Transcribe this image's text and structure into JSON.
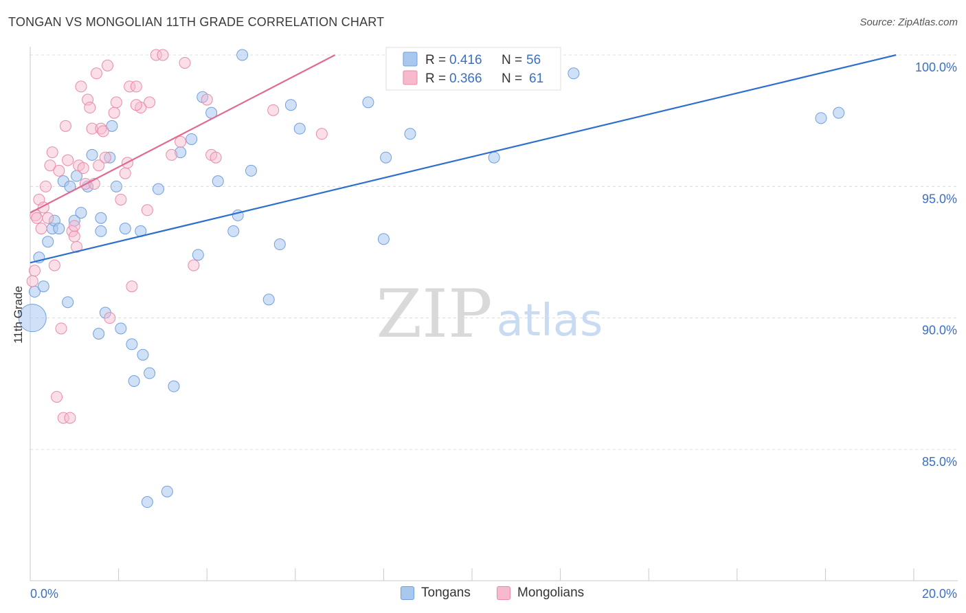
{
  "header": {
    "title": "TONGAN VS MONGOLIAN 11TH GRADE CORRELATION CHART",
    "source": "Source: ZipAtlas.com"
  },
  "watermark": {
    "zip": "ZIP",
    "atlas": "atlas"
  },
  "colors": {
    "tongan_fill": "#a9c8f0",
    "tongan_stroke": "#6f9fdc",
    "tongan_line": "#2c6fcf",
    "mongolian_fill": "#f7b9cc",
    "mongolian_stroke": "#ea8aa8",
    "mongolian_line": "#e2698f",
    "axis_text": "#3a6fc4",
    "grid": "#dcdcdc"
  },
  "legend": {
    "rows": [
      {
        "r_label": "R =",
        "r_value": "0.416",
        "n_label": "N =",
        "n_value": "56"
      },
      {
        "r_label": "R =",
        "r_value": "0.366",
        "n_label": "N =",
        "n_value": "61"
      }
    ]
  },
  "bottom_legend": {
    "tongans": "Tongans",
    "mongolians": "Mongolians"
  },
  "chart_data": {
    "type": "scatter",
    "title": "TONGAN VS MONGOLIAN 11TH GRADE CORRELATION CHART",
    "xlabel": "",
    "ylabel": "11th Grade",
    "xlim": [
      0,
      20
    ],
    "ylim": [
      80.5,
      101
    ],
    "x_tick_labels": [
      {
        "value": 0,
        "label": "0.0%"
      },
      {
        "value": 20,
        "label": "20.0%"
      }
    ],
    "y_tick_labels": [
      {
        "value": 100,
        "label": "100.0%"
      },
      {
        "value": 95,
        "label": "95.0%"
      },
      {
        "value": 90,
        "label": "90.0%"
      },
      {
        "value": 85,
        "label": "85.0%"
      }
    ],
    "series": [
      {
        "name": "Tongans",
        "r": 0.416,
        "n": 56,
        "trendline": [
          [
            0,
            92.1
          ],
          [
            19.6,
            100.0
          ]
        ],
        "points": [
          [
            0.05,
            90.0
          ],
          [
            0.1,
            91.0
          ],
          [
            0.2,
            92.3
          ],
          [
            0.3,
            91.2
          ],
          [
            0.4,
            92.9
          ],
          [
            0.5,
            93.4
          ],
          [
            0.55,
            93.7
          ],
          [
            0.65,
            93.4
          ],
          [
            0.75,
            95.2
          ],
          [
            0.85,
            90.6
          ],
          [
            0.9,
            95.0
          ],
          [
            1.0,
            93.7
          ],
          [
            1.05,
            95.4
          ],
          [
            1.15,
            94.0
          ],
          [
            1.3,
            95.0
          ],
          [
            1.4,
            96.2
          ],
          [
            1.55,
            89.4
          ],
          [
            1.6,
            93.3
          ],
          [
            1.6,
            93.8
          ],
          [
            1.7,
            90.2
          ],
          [
            1.8,
            96.1
          ],
          [
            1.85,
            97.3
          ],
          [
            1.95,
            95.0
          ],
          [
            2.05,
            89.6
          ],
          [
            2.15,
            93.4
          ],
          [
            2.3,
            89.0
          ],
          [
            2.35,
            87.6
          ],
          [
            2.5,
            93.3
          ],
          [
            2.55,
            88.6
          ],
          [
            2.65,
            83.0
          ],
          [
            2.7,
            87.9
          ],
          [
            2.9,
            94.9
          ],
          [
            3.1,
            83.4
          ],
          [
            3.25,
            87.4
          ],
          [
            3.4,
            96.3
          ],
          [
            3.65,
            96.8
          ],
          [
            3.8,
            92.4
          ],
          [
            3.9,
            98.4
          ],
          [
            4.1,
            97.8
          ],
          [
            4.25,
            95.2
          ],
          [
            4.6,
            93.3
          ],
          [
            4.7,
            93.9
          ],
          [
            4.8,
            100.0
          ],
          [
            5.0,
            95.6
          ],
          [
            5.4,
            90.7
          ],
          [
            5.65,
            92.8
          ],
          [
            5.9,
            98.1
          ],
          [
            6.1,
            97.2
          ],
          [
            7.65,
            98.2
          ],
          [
            8.0,
            93.0
          ],
          [
            8.05,
            96.1
          ],
          [
            8.6,
            97.0
          ],
          [
            10.5,
            96.1
          ],
          [
            12.3,
            99.3
          ],
          [
            17.9,
            97.6
          ],
          [
            18.3,
            97.8
          ]
        ]
      },
      {
        "name": "Mongolians",
        "r": 0.366,
        "n": 61,
        "trendline": [
          [
            0,
            94.0
          ],
          [
            6.9,
            100.0
          ]
        ],
        "points": [
          [
            0.05,
            91.4
          ],
          [
            0.1,
            91.8
          ],
          [
            0.12,
            93.9
          ],
          [
            0.15,
            93.8
          ],
          [
            0.2,
            94.5
          ],
          [
            0.25,
            93.4
          ],
          [
            0.3,
            94.2
          ],
          [
            0.35,
            95.0
          ],
          [
            0.4,
            93.8
          ],
          [
            0.45,
            95.8
          ],
          [
            0.5,
            96.3
          ],
          [
            0.55,
            92.0
          ],
          [
            0.6,
            87.0
          ],
          [
            0.65,
            95.6
          ],
          [
            0.7,
            89.6
          ],
          [
            0.75,
            86.2
          ],
          [
            0.8,
            97.3
          ],
          [
            0.85,
            96.0
          ],
          [
            0.9,
            86.2
          ],
          [
            0.95,
            93.3
          ],
          [
            1.0,
            93.1
          ],
          [
            1.05,
            92.7
          ],
          [
            1.1,
            95.8
          ],
          [
            1.15,
            98.8
          ],
          [
            1.2,
            95.7
          ],
          [
            1.25,
            95.1
          ],
          [
            1.3,
            98.3
          ],
          [
            1.35,
            98.0
          ],
          [
            1.4,
            97.2
          ],
          [
            1.45,
            95.1
          ],
          [
            1.5,
            99.3
          ],
          [
            1.55,
            95.8
          ],
          [
            1.6,
            97.2
          ],
          [
            1.65,
            97.1
          ],
          [
            1.7,
            96.1
          ],
          [
            1.75,
            99.6
          ],
          [
            1.8,
            90.0
          ],
          [
            1.9,
            97.8
          ],
          [
            1.95,
            98.2
          ],
          [
            2.05,
            94.5
          ],
          [
            2.15,
            95.5
          ],
          [
            2.2,
            95.9
          ],
          [
            2.25,
            98.8
          ],
          [
            2.3,
            91.2
          ],
          [
            2.4,
            98.8
          ],
          [
            2.5,
            98.0
          ],
          [
            2.65,
            94.1
          ],
          [
            2.7,
            98.2
          ],
          [
            2.85,
            100.0
          ],
          [
            3.0,
            100.0
          ],
          [
            3.2,
            96.2
          ],
          [
            3.4,
            96.7
          ],
          [
            3.5,
            99.7
          ],
          [
            3.7,
            92.0
          ],
          [
            4.0,
            98.3
          ],
          [
            4.1,
            96.2
          ],
          [
            4.2,
            96.1
          ],
          [
            5.5,
            97.9
          ],
          [
            6.6,
            97.0
          ],
          [
            2.4,
            98.1
          ],
          [
            1.0,
            93.5
          ]
        ]
      }
    ]
  }
}
